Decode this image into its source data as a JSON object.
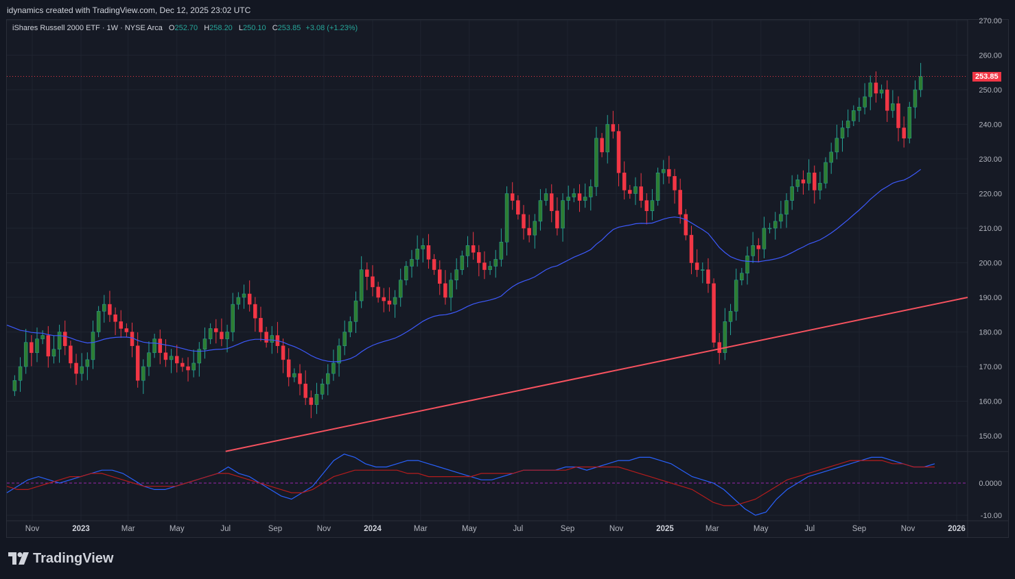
{
  "header": {
    "text": "idynamics created with TradingView.com, Dec 12, 2025 23:02 UTC"
  },
  "legend": {
    "symbol": "iShares Russell 2000 ETF · 1W · NYSE Arca",
    "open_label": "O",
    "open": "252.70",
    "high_label": "H",
    "high": "258.20",
    "low_label": "L",
    "low": "250.10",
    "close_label": "C",
    "close": "253.85",
    "change": "+3.08 (+1.23%)"
  },
  "last_price_label": "253.85",
  "brand": {
    "name": "TradingView"
  },
  "colors": {
    "background": "#161a25",
    "up": "#26a69a",
    "up_body": "#2e7d32",
    "down": "#f23645",
    "ma": "#3d5afe",
    "trendline": "#f7525f",
    "osc_fast": "#2962ff",
    "osc_slow": "#b71c1c"
  },
  "chart_data": [
    {
      "type": "candlestick",
      "title": "iShares Russell 2000 ETF · 1W · NYSE Arca",
      "x_tick_labels": [
        "Nov",
        "2023",
        "Mar",
        "May",
        "Jul",
        "Sep",
        "Nov",
        "2024",
        "Mar",
        "May",
        "Jul",
        "Sep",
        "Nov",
        "2025",
        "Mar",
        "May",
        "Jul",
        "Sep",
        "Nov",
        "2026"
      ],
      "x_tick_dates": [
        "2022-11-01",
        "2023-01-01",
        "2023-03-01",
        "2023-05-01",
        "2023-07-01",
        "2023-09-01",
        "2023-11-01",
        "2024-01-01",
        "2024-03-01",
        "2024-05-01",
        "2024-07-01",
        "2024-09-01",
        "2024-11-01",
        "2025-01-01",
        "2025-03-01",
        "2025-05-01",
        "2025-07-01",
        "2025-09-01",
        "2025-11-01",
        "2026-01-01"
      ],
      "y_tick_labels": [
        "150.00",
        "160.00",
        "170.00",
        "180.00",
        "190.00",
        "200.00",
        "210.00",
        "220.00",
        "230.00",
        "240.00",
        "250.00",
        "260.00",
        "270.00"
      ],
      "ylim": [
        145,
        270
      ],
      "first_week": "2022-10-10",
      "weekly_close": [
        166,
        170,
        177,
        174,
        178,
        179,
        173,
        175,
        180,
        176,
        171,
        168,
        170,
        172,
        180,
        186,
        188,
        185,
        183,
        181,
        180,
        176,
        166,
        170,
        174,
        178,
        174,
        172,
        173,
        171,
        170,
        169,
        171,
        175,
        178,
        181,
        180,
        178,
        180,
        188,
        190,
        191,
        188,
        184,
        180,
        177,
        179,
        176,
        172,
        167,
        168,
        165,
        161,
        159,
        162,
        165,
        168,
        171,
        176,
        180,
        183,
        189,
        198,
        196,
        193,
        190,
        189,
        188,
        190,
        195,
        199,
        201,
        204,
        205,
        201,
        198,
        194,
        190,
        195,
        198,
        202,
        205,
        203,
        200,
        198,
        199,
        201,
        206,
        220,
        218,
        214,
        210,
        208,
        212,
        218,
        220,
        215,
        210,
        218,
        219,
        220,
        218,
        219,
        222,
        236,
        232,
        240,
        238,
        226,
        221,
        220,
        222,
        218,
        215,
        218,
        226,
        227,
        225,
        221,
        214,
        208,
        200,
        198,
        198,
        194,
        177,
        174,
        183,
        186,
        195,
        197,
        202,
        205,
        204,
        210,
        210,
        212,
        214,
        218,
        222,
        224,
        223,
        226,
        221,
        223,
        229,
        232,
        236,
        239,
        241,
        244,
        245,
        248,
        252,
        249,
        250,
        244,
        246,
        239,
        236,
        245,
        250,
        253.85
      ],
      "moving_average_start": 182,
      "moving_average_current": 227,
      "trendline": {
        "from_date": "2023-07-01",
        "from_price": 145.5,
        "to_date": "2026-01-01",
        "to_price": 190
      },
      "last_price": 253.85
    },
    {
      "type": "line",
      "y_tick_labels": [
        "0.0000",
        "-10.00"
      ],
      "ylim": [
        -13,
        12
      ],
      "series": [
        {
          "values": [
            -3,
            -1,
            1,
            2,
            1,
            0,
            1,
            2,
            3,
            4,
            4,
            3,
            1,
            -1,
            -2,
            -2,
            -1,
            0,
            1,
            2,
            3,
            5,
            3,
            2,
            0,
            -2,
            -4,
            -5,
            -3,
            -1,
            3,
            7,
            9,
            8,
            6,
            5,
            5,
            6,
            7,
            7,
            6,
            5,
            4,
            3,
            2,
            1,
            1,
            2,
            3,
            4,
            4,
            4,
            4,
            5,
            5,
            4,
            5,
            6,
            7,
            7,
            8,
            8,
            7,
            6,
            4,
            2,
            1,
            0,
            -2,
            -5,
            -8,
            -10,
            -9,
            -5,
            -2,
            0,
            2,
            3,
            4,
            5,
            6,
            7,
            8,
            8,
            7,
            6,
            5,
            5,
            6
          ]
        },
        {
          "values": [
            -1,
            -2,
            -2,
            -1,
            0,
            1,
            2,
            2,
            3,
            3,
            2,
            1,
            0,
            -1,
            -1,
            -1,
            -1,
            0,
            1,
            2,
            3,
            3,
            2,
            1,
            0,
            -1,
            -2,
            -3,
            -3,
            -2,
            0,
            2,
            3,
            4,
            4,
            4,
            4,
            4,
            3,
            3,
            2,
            2,
            2,
            2,
            2,
            3,
            3,
            3,
            3,
            4,
            4,
            4,
            4,
            4,
            5,
            5,
            5,
            5,
            5,
            4,
            3,
            2,
            1,
            0,
            -1,
            -2,
            -4,
            -6,
            -7,
            -7,
            -6,
            -5,
            -3,
            -1,
            1,
            2,
            3,
            4,
            5,
            6,
            7,
            7,
            7,
            7,
            6,
            6,
            5,
            5,
            5
          ]
        }
      ],
      "zero_line": 0
    }
  ]
}
